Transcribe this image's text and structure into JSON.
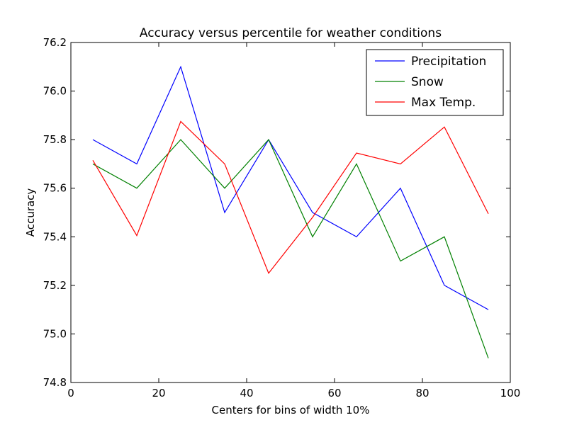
{
  "chart_data": {
    "type": "line",
    "title": "Accuracy versus percentile for weather conditions",
    "xlabel": "Centers for bins of width 10%",
    "ylabel": "Accuracy",
    "xlim": [
      0,
      100
    ],
    "ylim": [
      74.8,
      76.2
    ],
    "x_ticks": [
      "0",
      "20",
      "40",
      "60",
      "80",
      "100"
    ],
    "y_ticks": [
      "74.8",
      "75.0",
      "75.2",
      "75.4",
      "75.6",
      "75.8",
      "76.0",
      "76.2"
    ],
    "grid": false,
    "legend_position": "top-right",
    "x": [
      5,
      15,
      25,
      35,
      45,
      55,
      65,
      75,
      85,
      95
    ],
    "series": [
      {
        "name": "Precipitation",
        "color": "#0000ff",
        "values": [
          75.8,
          75.7,
          76.1,
          75.5,
          75.8,
          75.5,
          75.4,
          75.6,
          75.2,
          75.1
        ]
      },
      {
        "name": "Snow",
        "color": "#008000",
        "values": [
          75.7,
          75.6,
          75.8,
          75.6,
          75.8,
          75.4,
          75.7,
          75.3,
          75.4,
          74.9
        ]
      },
      {
        "name": "Max Temp.",
        "color": "#ff0000",
        "values": [
          75.715,
          75.405,
          75.875,
          75.7,
          75.25,
          75.48,
          75.745,
          75.7,
          75.852,
          75.495
        ]
      }
    ]
  }
}
